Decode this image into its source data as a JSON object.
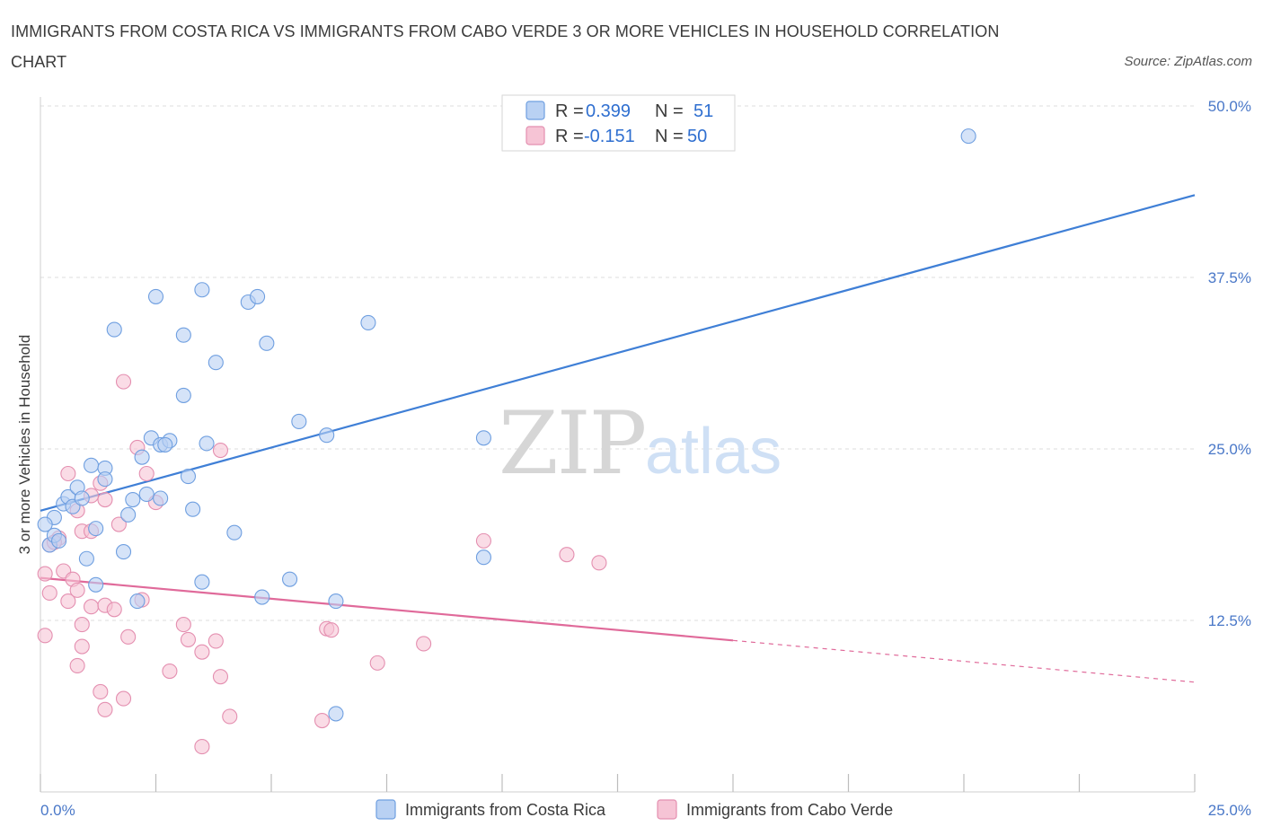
{
  "title": "IMMIGRANTS FROM COSTA RICA VS IMMIGRANTS FROM CABO VERDE 3 OR MORE VEHICLES IN HOUSEHOLD CORRELATION CHART",
  "source": "Source: ZipAtlas.com",
  "watermark": {
    "zip": "ZIP",
    "atlas": "atlas"
  },
  "colors": {
    "blue": "#3f7fd6",
    "blue_fill": "#b9d1f3",
    "pink": "#e06a9a",
    "pink_fill": "#f6c4d5",
    "grid": "#dcdcdc",
    "tick_text": "#4a78c8"
  },
  "legend": {
    "rows": [
      {
        "r_label": "R = ",
        "r_value": "0.399",
        "n_label": "N = ",
        "n_value": "51"
      },
      {
        "r_label": "R = ",
        "r_value": "-0.151",
        "n_label": "N = ",
        "n_value": "50"
      }
    ]
  },
  "bottom_legend": [
    "Immigrants from Costa Rica",
    "Immigrants from Cabo Verde"
  ],
  "chart_data": {
    "type": "scatter",
    "title": "IMMIGRANTS FROM COSTA RICA VS IMMIGRANTS FROM CABO VERDE 3 OR MORE VEHICLES IN HOUSEHOLD CORRELATION CHART",
    "xlabel": "",
    "ylabel": "3 or more Vehicles in Household",
    "xlim": [
      0,
      25
    ],
    "ylim": [
      0,
      50
    ],
    "x_tick_labels": [
      "0.0%",
      "25.0%"
    ],
    "y_ticks": [
      12.5,
      25.0,
      37.5,
      50.0
    ],
    "y_tick_labels": [
      "12.5%",
      "25.0%",
      "37.5%",
      "50.0%"
    ],
    "grid": true,
    "legend_position": "top-center",
    "series": [
      {
        "name": "Immigrants from Costa Rica",
        "r": 0.399,
        "n": 51,
        "points": [
          [
            0.2,
            18.0
          ],
          [
            0.3,
            18.7
          ],
          [
            0.4,
            18.3
          ],
          [
            0.3,
            20.0
          ],
          [
            0.5,
            21.0
          ],
          [
            0.6,
            21.5
          ],
          [
            0.8,
            22.2
          ],
          [
            0.7,
            20.8
          ],
          [
            0.9,
            21.4
          ],
          [
            1.1,
            23.8
          ],
          [
            1.4,
            23.6
          ],
          [
            1.4,
            22.8
          ],
          [
            1.2,
            19.2
          ],
          [
            1.0,
            17.0
          ],
          [
            1.2,
            15.1
          ],
          [
            1.8,
            17.5
          ],
          [
            1.9,
            20.2
          ],
          [
            2.0,
            21.3
          ],
          [
            2.2,
            24.4
          ],
          [
            2.3,
            21.7
          ],
          [
            2.4,
            25.8
          ],
          [
            2.6,
            25.3
          ],
          [
            2.8,
            25.6
          ],
          [
            2.7,
            25.3
          ],
          [
            2.6,
            21.4
          ],
          [
            3.2,
            23.0
          ],
          [
            3.3,
            20.6
          ],
          [
            3.5,
            15.3
          ],
          [
            3.6,
            25.4
          ],
          [
            4.2,
            18.9
          ],
          [
            4.8,
            14.2
          ],
          [
            5.4,
            15.5
          ],
          [
            2.1,
            13.9
          ],
          [
            1.6,
            33.7
          ],
          [
            2.5,
            36.1
          ],
          [
            3.1,
            33.3
          ],
          [
            3.1,
            28.9
          ],
          [
            3.5,
            36.6
          ],
          [
            3.8,
            31.3
          ],
          [
            4.5,
            35.7
          ],
          [
            4.7,
            36.1
          ],
          [
            4.9,
            32.7
          ],
          [
            5.6,
            27.0
          ],
          [
            6.2,
            26.0
          ],
          [
            7.1,
            34.2
          ],
          [
            9.6,
            25.8
          ],
          [
            9.6,
            17.1
          ],
          [
            6.4,
            13.9
          ],
          [
            6.4,
            5.7
          ],
          [
            20.1,
            47.8
          ],
          [
            0.1,
            19.5
          ]
        ],
        "trend": {
          "x": [
            0,
            25
          ],
          "y": [
            20.5,
            43.5
          ],
          "dashed_from_x": null
        }
      },
      {
        "name": "Immigrants from Cabo Verde",
        "r": -0.151,
        "n": 50,
        "points": [
          [
            0.1,
            15.9
          ],
          [
            0.1,
            11.4
          ],
          [
            0.2,
            14.5
          ],
          [
            0.2,
            18.0
          ],
          [
            0.4,
            18.5
          ],
          [
            0.5,
            16.1
          ],
          [
            0.6,
            13.9
          ],
          [
            0.7,
            15.5
          ],
          [
            0.8,
            14.7
          ],
          [
            0.9,
            19.0
          ],
          [
            0.8,
            20.5
          ],
          [
            0.9,
            12.2
          ],
          [
            0.9,
            10.6
          ],
          [
            0.8,
            9.2
          ],
          [
            0.6,
            23.2
          ],
          [
            1.1,
            21.6
          ],
          [
            1.1,
            19.0
          ],
          [
            1.3,
            22.5
          ],
          [
            1.4,
            21.3
          ],
          [
            1.1,
            13.5
          ],
          [
            1.4,
            13.6
          ],
          [
            1.6,
            13.3
          ],
          [
            1.3,
            7.3
          ],
          [
            1.4,
            6.0
          ],
          [
            1.7,
            19.5
          ],
          [
            1.8,
            6.8
          ],
          [
            1.9,
            11.3
          ],
          [
            2.1,
            25.1
          ],
          [
            2.3,
            23.2
          ],
          [
            2.5,
            21.1
          ],
          [
            2.2,
            14.0
          ],
          [
            1.8,
            29.9
          ],
          [
            2.8,
            8.8
          ],
          [
            3.1,
            12.2
          ],
          [
            3.2,
            11.1
          ],
          [
            3.5,
            10.2
          ],
          [
            3.5,
            3.3
          ],
          [
            3.8,
            11.0
          ],
          [
            3.9,
            8.4
          ],
          [
            3.9,
            24.9
          ],
          [
            4.1,
            5.5
          ],
          [
            6.2,
            11.9
          ],
          [
            6.3,
            11.8
          ],
          [
            6.1,
            5.2
          ],
          [
            7.3,
            9.4
          ],
          [
            8.3,
            10.8
          ],
          [
            9.6,
            18.3
          ],
          [
            11.4,
            17.3
          ],
          [
            12.1,
            16.7
          ],
          [
            0.3,
            18.2
          ]
        ],
        "trend": {
          "x": [
            0,
            25
          ],
          "y": [
            15.6,
            8.0
          ],
          "dashed_from_x": 15
        }
      }
    ]
  }
}
